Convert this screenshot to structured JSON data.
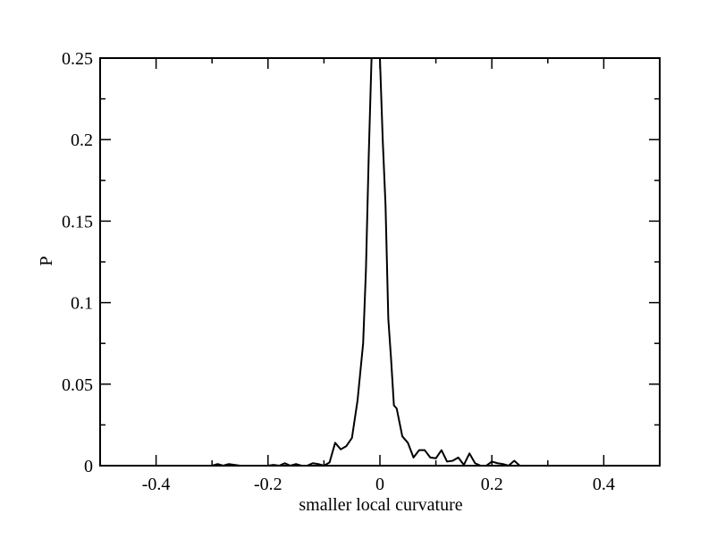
{
  "chart_data": {
    "type": "line",
    "title": "",
    "xlabel": "smaller local curvature",
    "ylabel": "P",
    "xlim": [
      -0.5,
      0.5
    ],
    "ylim": [
      0,
      0.25
    ],
    "x_ticks": [
      -0.4,
      -0.2,
      0,
      0.2,
      0.4
    ],
    "x_tick_labels": [
      "-0.4",
      "-0.2",
      "0",
      "0.2",
      "0.4"
    ],
    "y_ticks": [
      0,
      0.05,
      0.1,
      0.15,
      0.2,
      0.25
    ],
    "y_tick_labels": [
      "0",
      "0.05",
      "0.1",
      "0.15",
      "0.2",
      "0.25"
    ],
    "x_minor_step": 0.1,
    "y_minor_step": 0.025,
    "grid": false,
    "legend": "none",
    "line_color": "#000000",
    "series": [
      {
        "x": [
          -0.3,
          -0.29,
          -0.28,
          -0.27,
          -0.26,
          -0.25,
          -0.24,
          -0.23,
          -0.22,
          -0.21,
          -0.2,
          -0.19,
          -0.18,
          -0.17,
          -0.16,
          -0.15,
          -0.14,
          -0.13,
          -0.12,
          -0.11,
          -0.1,
          -0.09,
          -0.08,
          -0.07,
          -0.06,
          -0.05,
          -0.04,
          -0.03,
          -0.025,
          -0.02,
          -0.015,
          -0.01,
          -0.005,
          0.0,
          0.005,
          0.01,
          0.015,
          0.02,
          0.025,
          0.03,
          0.04,
          0.05,
          0.06,
          0.07,
          0.08,
          0.09,
          0.1,
          0.11,
          0.12,
          0.13,
          0.14,
          0.15,
          0.16,
          0.17,
          0.18,
          0.19,
          0.2,
          0.21,
          0.22,
          0.23,
          0.24,
          0.25,
          0.26
        ],
        "y": [
          0.0,
          0.001,
          0.0,
          0.001,
          0.0005,
          0.0,
          0.0,
          0.0,
          0.0,
          0.0,
          0.0,
          0.0005,
          0.0,
          0.0015,
          0.0,
          0.001,
          0.0,
          0.0,
          0.0015,
          0.001,
          0.0,
          0.002,
          0.014,
          0.01,
          0.012,
          0.017,
          0.04,
          0.075,
          0.12,
          0.19,
          0.25,
          0.25,
          0.25,
          0.25,
          0.2,
          0.16,
          0.09,
          0.065,
          0.037,
          0.035,
          0.018,
          0.014,
          0.005,
          0.0095,
          0.0095,
          0.005,
          0.0045,
          0.0095,
          0.0025,
          0.003,
          0.005,
          0.0005,
          0.0075,
          0.0015,
          0.0,
          0.0,
          0.0025,
          0.0015,
          0.001,
          0.0,
          0.003,
          0.0,
          0.0
        ]
      }
    ]
  }
}
